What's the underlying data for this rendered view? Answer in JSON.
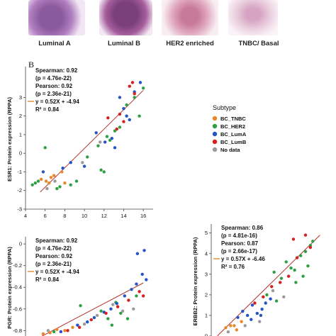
{
  "panel_a": {
    "labels": [
      "Luminal A",
      "Luminal B",
      "HER2 enriched",
      "TNBC/ Basal"
    ]
  },
  "panel_b_letter": "B",
  "legend": {
    "title": "Subtype",
    "items": [
      {
        "label": "BC_TNBC",
        "color": "#e8862a"
      },
      {
        "label": "BC_HER2",
        "color": "#2ea043"
      },
      {
        "label": "BC_LumA",
        "color": "#2554c7"
      },
      {
        "label": "BC_LumB",
        "color": "#d42020"
      },
      {
        "label": "No data",
        "color": "#9a9a9a"
      }
    ]
  },
  "chart_data": [
    {
      "type": "scatter",
      "ylabel": "ESR1: Protein expression (RPPA)",
      "xlim": [
        4,
        17
      ],
      "ylim": [
        -3,
        4.5
      ],
      "xticks": [
        4,
        6,
        8,
        10,
        12,
        14,
        16
      ],
      "yticks": [
        -3,
        -2,
        -1,
        0,
        1,
        2,
        3
      ],
      "annotations": [
        "Spearman: 0.92",
        "(p = 4.76e-22)",
        "Pearson: 0.92",
        "(p = 2.36e-21)",
        "y = 0.52X + -4.94",
        "R² = 0.84"
      ],
      "fit": {
        "slope": 0.52,
        "intercept": -4.94,
        "x_range": [
          5.5,
          16
        ]
      },
      "series": [
        {
          "name": "BC_TNBC",
          "points": [
            [
              6.1,
              -1.5
            ],
            [
              6.4,
              -1.6
            ],
            [
              6.9,
              -1.2
            ],
            [
              7.7,
              -1.0
            ],
            [
              8.0,
              -1.6
            ],
            [
              5.6,
              -1.4
            ],
            [
              6.6,
              -1.3
            ]
          ]
        },
        {
          "name": "BC_HER2",
          "points": [
            [
              4.7,
              -1.7
            ],
            [
              5.0,
              -1.6
            ],
            [
              5.3,
              -1.5
            ],
            [
              6.0,
              0.3
            ],
            [
              7.2,
              -1.9
            ],
            [
              7.5,
              -1.8
            ],
            [
              8.6,
              -1.7
            ],
            [
              9.2,
              -1.5
            ],
            [
              10.3,
              -0.2
            ],
            [
              11.4,
              0.4
            ],
            [
              12.3,
              0.9
            ],
            [
              12.6,
              0.7
            ],
            [
              13.1,
              1.2
            ],
            [
              13.6,
              1.4
            ],
            [
              14.3,
              2.6
            ],
            [
              15.1,
              3.0
            ],
            [
              15.6,
              2.0
            ],
            [
              16.0,
              3.5
            ],
            [
              11.7,
              -0.9
            ],
            [
              12.0,
              -1.0
            ]
          ]
        },
        {
          "name": "BC_LumA",
          "points": [
            [
              5.8,
              -1.0
            ],
            [
              7.8,
              -0.8
            ],
            [
              8.6,
              -0.5
            ],
            [
              10.0,
              -0.7
            ],
            [
              11.2,
              1.1
            ],
            [
              12.1,
              0.6
            ],
            [
              12.8,
              0.8
            ],
            [
              13.1,
              0.3
            ],
            [
              13.6,
              3.0
            ],
            [
              14.0,
              2.4
            ],
            [
              14.3,
              2.0
            ],
            [
              14.6,
              1.8
            ],
            [
              15.1,
              3.3
            ],
            [
              15.7,
              3.8
            ]
          ]
        },
        {
          "name": "BC_LumB",
          "points": [
            [
              12.4,
              1.9
            ],
            [
              13.3,
              1.3
            ],
            [
              14.0,
              1.7
            ],
            [
              14.6,
              3.6
            ],
            [
              14.9,
              3.8
            ],
            [
              15.1,
              3.2
            ],
            [
              13.6,
              2.1
            ]
          ]
        },
        {
          "name": "No data",
          "points": [
            [
              6.2,
              -1.9
            ],
            [
              7.0,
              -1.5
            ],
            [
              9.8,
              -0.5
            ],
            [
              11.6,
              0.6
            ]
          ]
        }
      ]
    },
    {
      "type": "scatter",
      "ylabel": "PGR: Protein expression (RPPA)",
      "ylim": [
        -0.85,
        0.04
      ],
      "yticks": [
        0,
        -0.2,
        -0.4,
        -0.6,
        -0.8
      ],
      "annotations": [
        "Spearman: 0.92",
        "(p = 4.76e-22)",
        "Pearson: 0.92",
        "(p = 2.36e-21)",
        "y = 0.52X + -4.94",
        "R² = 0.84"
      ],
      "fit": {
        "slope": 0.52,
        "intercept": -4.94,
        "x_range": [
          5.5,
          16
        ]
      },
      "series": [
        {
          "name": "BC_TNBC",
          "points": [
            [
              5.8,
              -0.83
            ],
            [
              6.5,
              -0.82
            ],
            [
              7.2,
              -0.79
            ],
            [
              8.0,
              -0.8
            ],
            [
              8.8,
              -0.77
            ]
          ]
        },
        {
          "name": "BC_HER2",
          "points": [
            [
              9.6,
              -0.57
            ],
            [
              11.7,
              -0.62
            ],
            [
              12.4,
              -0.69
            ],
            [
              13.2,
              -0.54
            ],
            [
              13.7,
              -0.64
            ],
            [
              14.4,
              -0.69
            ],
            [
              15.3,
              -0.48
            ],
            [
              12.8,
              -0.75
            ],
            [
              6.9,
              -0.81
            ]
          ]
        },
        {
          "name": "BC_LumA",
          "points": [
            [
              9.3,
              -0.75
            ],
            [
              10.3,
              -0.72
            ],
            [
              11.0,
              -0.68
            ],
            [
              12.0,
              -0.63
            ],
            [
              13.3,
              -0.55
            ],
            [
              14.1,
              -0.48
            ],
            [
              14.8,
              -0.42
            ],
            [
              15.3,
              -0.37
            ],
            [
              15.9,
              -0.28
            ],
            [
              16.3,
              -0.33
            ],
            [
              15.4,
              -0.09
            ],
            [
              16.1,
              -0.06
            ],
            [
              12.7,
              -0.6
            ],
            [
              7.6,
              -0.81
            ]
          ]
        },
        {
          "name": "BC_LumB",
          "points": [
            [
              9.5,
              -0.77
            ],
            [
              10.7,
              -0.7
            ],
            [
              12.2,
              -0.64
            ],
            [
              13.4,
              -0.58
            ],
            [
              14.5,
              -0.52
            ],
            [
              15.6,
              -0.44
            ],
            [
              16.0,
              -0.48
            ],
            [
              8.3,
              -0.8
            ]
          ]
        },
        {
          "name": "No data",
          "points": [
            [
              6.3,
              -0.8
            ],
            [
              10.0,
              -0.74
            ],
            [
              11.3,
              -0.66
            ],
            [
              12.9,
              -0.56
            ],
            [
              15.0,
              -0.6
            ],
            [
              13.9,
              -0.62
            ]
          ]
        }
      ]
    },
    {
      "type": "scatter",
      "ylabel": "ERBB2: Protein expression (RPPA)",
      "ylim": [
        0,
        5.3
      ],
      "yticks": [
        0,
        1,
        2,
        3,
        4,
        5
      ],
      "annotations": [
        "Spearman: 0.86",
        "(p = 4.81e-16)",
        "Pearson: 0.87",
        "(p = 2.66e-17)",
        "y = 0.57X + -6.46",
        "R² = 0.76"
      ],
      "fit": {
        "slope": 0.57,
        "intercept": -6.46,
        "x_range": [
          11.5,
          20
        ]
      },
      "series": [
        {
          "name": "BC_TNBC",
          "points": [
            [
              12.2,
              0.4
            ],
            [
              12.6,
              0.5
            ],
            [
              13.1,
              0.3
            ],
            [
              13.5,
              0.7
            ],
            [
              12.9,
              0.5
            ]
          ]
        },
        {
          "name": "BC_HER2",
          "points": [
            [
              16.2,
              3.1
            ],
            [
              16.8,
              2.8
            ],
            [
              17.2,
              3.6
            ],
            [
              17.6,
              3.3
            ],
            [
              18.0,
              2.6
            ],
            [
              18.4,
              3.9
            ],
            [
              18.8,
              4.1
            ],
            [
              19.2,
              4.4
            ],
            [
              19.4,
              4.6
            ],
            [
              15.6,
              2.0
            ],
            [
              16.4,
              1.7
            ],
            [
              17.9,
              3.2
            ],
            [
              18.6,
              2.9
            ],
            [
              19.0,
              3.4
            ]
          ]
        },
        {
          "name": "BC_LumA",
          "points": [
            [
              13.2,
              0.9
            ],
            [
              13.6,
              1.2
            ],
            [
              14.0,
              1.0
            ],
            [
              14.4,
              1.5
            ],
            [
              14.8,
              1.1
            ],
            [
              15.2,
              1.3
            ],
            [
              15.5,
              1.6
            ],
            [
              15.9,
              1.8
            ],
            [
              14.3,
              0.8
            ],
            [
              15.1,
              1.0
            ]
          ]
        },
        {
          "name": "BC_LumB",
          "points": [
            [
              14.6,
              1.6
            ],
            [
              15.3,
              1.9
            ],
            [
              16.0,
              2.4
            ],
            [
              16.7,
              2.6
            ],
            [
              17.4,
              2.9
            ],
            [
              18.1,
              3.8
            ],
            [
              18.8,
              4.9
            ],
            [
              19.2,
              4.3
            ],
            [
              17.8,
              4.7
            ]
          ]
        },
        {
          "name": "No data",
          "points": [
            [
              12.4,
              0.2
            ],
            [
              13.8,
              0.5
            ],
            [
              15.0,
              0.7
            ],
            [
              16.1,
              2.2
            ],
            [
              17.0,
              1.9
            ]
          ]
        }
      ]
    }
  ]
}
